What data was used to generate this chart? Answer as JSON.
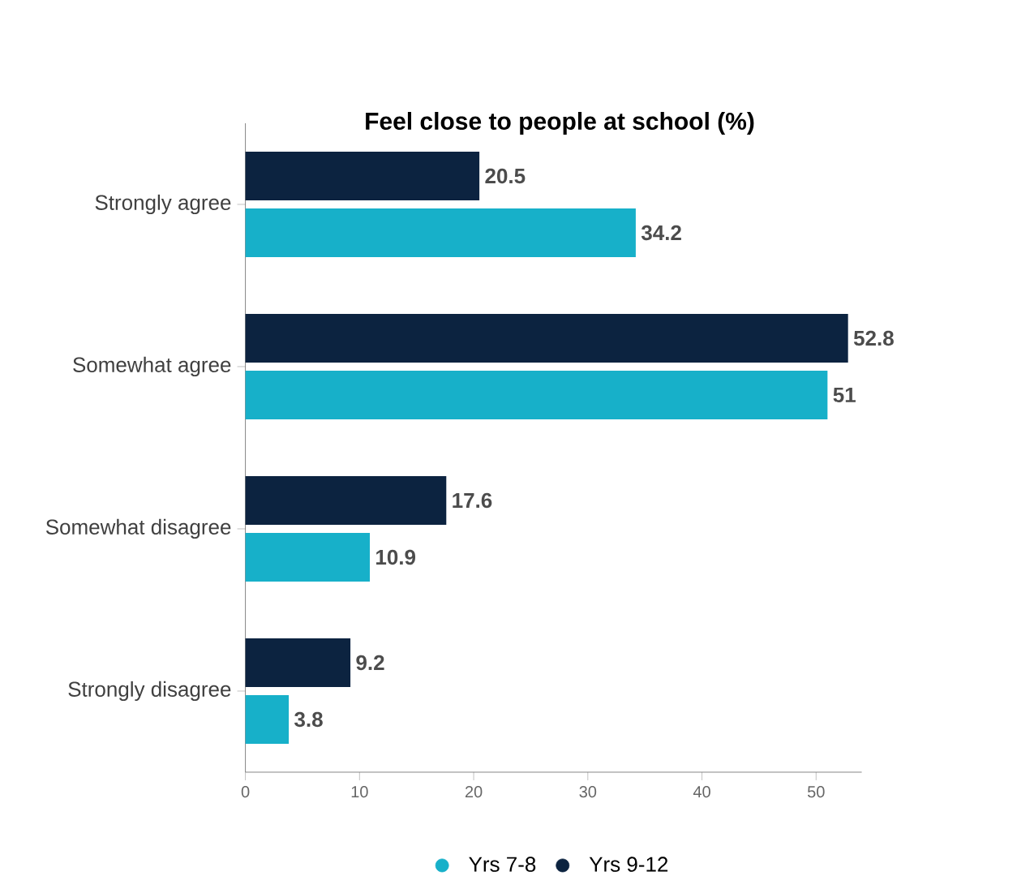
{
  "chart_data": {
    "type": "bar",
    "orientation": "horizontal",
    "title": "Feel close to people at school (%)",
    "categories": [
      "Strongly agree",
      "Somewhat agree",
      "Somewhat disagree",
      "Strongly disagree"
    ],
    "series": [
      {
        "name": "Yrs 7-8",
        "color": "#17b0c9",
        "values": [
          34.2,
          51,
          10.9,
          3.8
        ]
      },
      {
        "name": "Yrs 9-12",
        "color": "#0c2340",
        "values": [
          20.5,
          52.8,
          17.6,
          9.2
        ]
      }
    ],
    "xlim": [
      0,
      54
    ],
    "xticks": [
      0,
      10,
      20,
      30,
      40,
      50
    ],
    "data_labels": true,
    "legend": "bottom",
    "grid": false
  }
}
